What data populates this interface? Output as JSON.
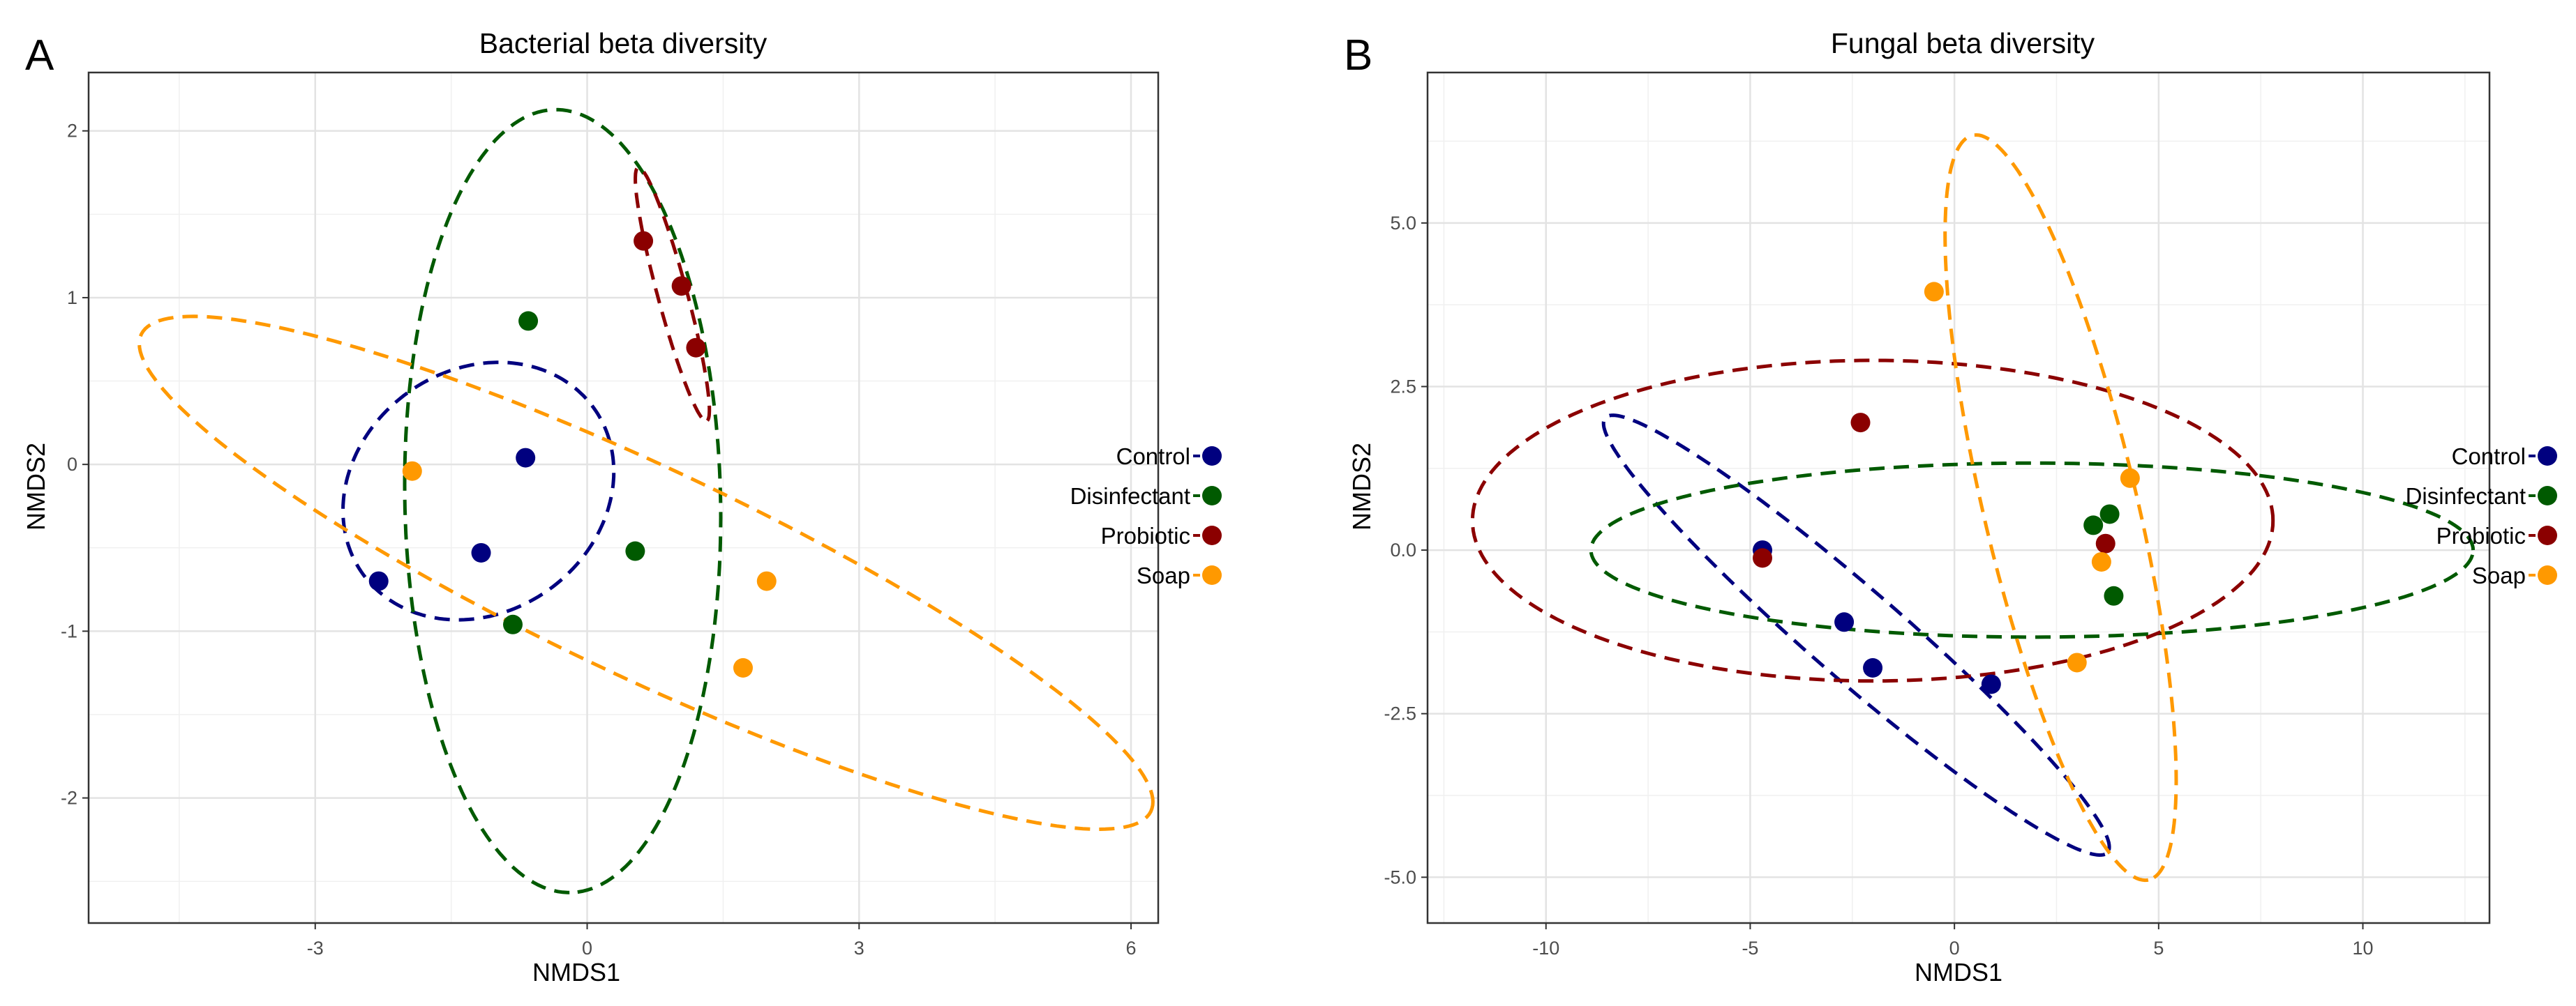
{
  "chart_data": [
    {
      "panel": "A",
      "type": "scatter",
      "title": "Bacterial beta diversity",
      "xlabel": "NMDS1",
      "ylabel": "NMDS2",
      "xlim": [
        -5.5,
        6.3
      ],
      "ylim": [
        -2.75,
        2.35
      ],
      "xticks": [
        -3,
        0,
        3,
        6
      ],
      "yticks": [
        -2,
        -1,
        0,
        1,
        2
      ],
      "xtick_labels": [
        "-3",
        "0",
        "3",
        "6"
      ],
      "ytick_labels": [
        "-2",
        "-1",
        "0",
        "1",
        "2"
      ],
      "grid": true,
      "legend_position": "right",
      "series": [
        {
          "name": "Control",
          "color": "#00007f",
          "points": [
            [
              -0.68,
              0.04
            ],
            [
              -1.17,
              -0.53
            ],
            [
              -2.3,
              -0.7
            ]
          ],
          "ellipse": {
            "cx": -1.2,
            "cy": -0.16,
            "rx": 1.5,
            "ry": 0.76,
            "angle": 6
          }
        },
        {
          "name": "Disinfectant",
          "color": "#005a00",
          "points": [
            [
              -0.65,
              0.86
            ],
            [
              0.53,
              -0.52
            ],
            [
              -0.82,
              -0.96
            ]
          ],
          "ellipse": {
            "cx": -0.27,
            "cy": -0.22,
            "rx": 2.35,
            "ry": 1.74,
            "angle": -86
          }
        },
        {
          "name": "Probiotic",
          "color": "#8b0000",
          "points": [
            [
              0.62,
              1.34
            ],
            [
              1.04,
              1.07
            ],
            [
              1.2,
              0.7
            ]
          ],
          "ellipse": {
            "cx": 0.94,
            "cy": 1.02,
            "rx": 0.85,
            "ry": 0.15,
            "angle": -63
          }
        },
        {
          "name": "Soap",
          "color": "#ff9900",
          "points": [
            [
              -1.93,
              -0.04
            ],
            [
              1.98,
              -0.7
            ],
            [
              1.72,
              -1.22
            ]
          ],
          "ellipse": {
            "cx": 0.65,
            "cy": -0.65,
            "rx": 5.76,
            "ry": 0.67,
            "angle": -14
          }
        }
      ]
    },
    {
      "panel": "B",
      "type": "scatter",
      "title": "Fungal beta diversity",
      "xlabel": "NMDS1",
      "ylabel": "NMDS2",
      "xlim": [
        -12.9,
        13.1
      ],
      "ylim": [
        -5.7,
        7.3
      ],
      "xticks": [
        -10,
        -5,
        0,
        5,
        10
      ],
      "yticks": [
        -5,
        -2.5,
        0,
        2.5,
        5
      ],
      "xtick_labels": [
        "-10",
        "-5",
        "0",
        "5",
        "10"
      ],
      "ytick_labels": [
        "-5.0",
        "-2.5",
        "0.0",
        "2.5",
        "5.0"
      ],
      "grid": true,
      "legend_position": "right",
      "series": [
        {
          "name": "Control",
          "color": "#00007f",
          "points": [
            [
              -4.7,
              0.0
            ],
            [
              -2.7,
              -1.1
            ],
            [
              -2.0,
              -1.8
            ],
            [
              0.9,
              -2.05
            ]
          ],
          "ellipse": {
            "cx": -2.4,
            "cy": -1.3,
            "rx": 7.0,
            "ry": 0.8,
            "angle": -28
          }
        },
        {
          "name": "Disinfectant",
          "color": "#005a00",
          "points": [
            [
              3.4,
              0.38
            ],
            [
              3.8,
              0.55
            ],
            [
              3.9,
              -0.7
            ]
          ],
          "ellipse": {
            "cx": 1.9,
            "cy": 0.0,
            "rx": 10.8,
            "ry": 1.33,
            "angle": 0
          }
        },
        {
          "name": "Probiotic",
          "color": "#8b0000",
          "points": [
            [
              -2.3,
              1.95
            ],
            [
              -4.7,
              -0.12
            ],
            [
              3.7,
              0.1
            ]
          ],
          "ellipse": {
            "cx": -2.0,
            "cy": 0.45,
            "rx": 9.8,
            "ry": 2.45,
            "angle": 0
          }
        },
        {
          "name": "Soap",
          "color": "#ff9900",
          "points": [
            [
              -0.5,
              3.95
            ],
            [
              4.3,
              1.1
            ],
            [
              3.6,
              -0.18
            ],
            [
              3.0,
              -1.72
            ]
          ],
          "ellipse": {
            "cx": 2.6,
            "cy": 0.65,
            "rx": 6.1,
            "ry": 1.8,
            "angle": -68
          }
        }
      ]
    }
  ]
}
